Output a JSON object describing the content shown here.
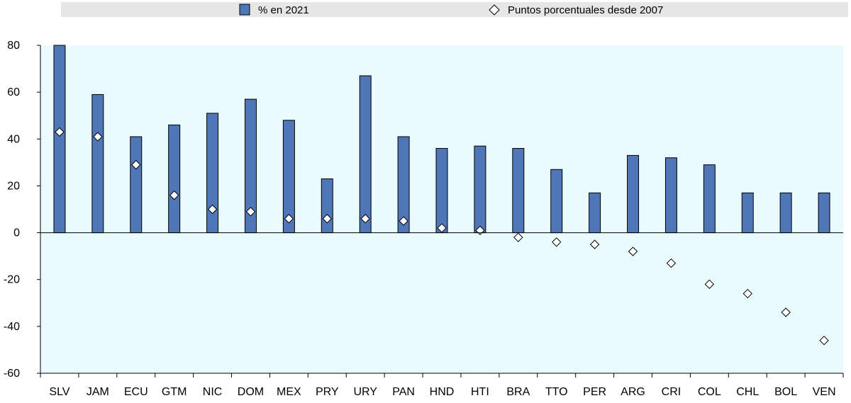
{
  "colors": {
    "bar": "#4f76b7",
    "bar_stroke": "#000000",
    "plot_bg": "#eafbfd",
    "legend_bg": "#e6e6e6",
    "marker_fill": "#ffffff",
    "marker_stroke": "#000000"
  },
  "chart_data": {
    "type": "bar",
    "categories": [
      "SLV",
      "JAM",
      "ECU",
      "GTM",
      "NIC",
      "DOM",
      "MEX",
      "PRY",
      "URY",
      "PAN",
      "HND",
      "HTI",
      "BRA",
      "TTO",
      "PER",
      "ARG",
      "CRI",
      "COL",
      "CHL",
      "BOL",
      "VEN"
    ],
    "series": [
      {
        "name": "% en 2021",
        "kind": "bar",
        "values": [
          80,
          59,
          41,
          46,
          51,
          57,
          48,
          23,
          67,
          41,
          36,
          37,
          36,
          27,
          17,
          33,
          32,
          29,
          17,
          17,
          17
        ]
      },
      {
        "name": "Puntos porcentuales desde 2007",
        "kind": "diamond-marker",
        "values": [
          43,
          41,
          29,
          16,
          10,
          9,
          6,
          6,
          6,
          5,
          2,
          1,
          -2,
          -4,
          -5,
          -8,
          -13,
          -22,
          -26,
          -34,
          -46
        ]
      }
    ],
    "title": "",
    "xlabel": "",
    "ylabel": "",
    "ylim": [
      -60,
      80
    ],
    "yticks": [
      "80",
      "60",
      "40",
      "20",
      "0",
      "-20",
      "-40",
      "-60"
    ],
    "grid": false,
    "legend_position": "top"
  }
}
